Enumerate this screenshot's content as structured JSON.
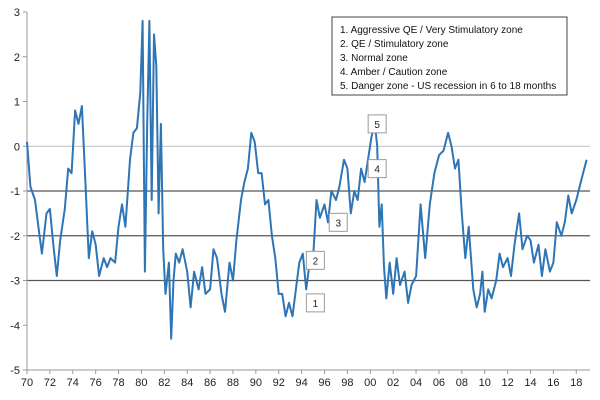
{
  "chart_data": {
    "type": "line",
    "title": "",
    "xlabel": "",
    "ylabel": "",
    "xlim": [
      1970,
      2019.2
    ],
    "ylim": [
      -5,
      3
    ],
    "yticks": [
      -5,
      -4,
      -3,
      -2,
      -1,
      0,
      1,
      2,
      3
    ],
    "xtick_values": [
      1970,
      1972,
      1974,
      1976,
      1978,
      1980,
      1982,
      1984,
      1986,
      1988,
      1990,
      1992,
      1994,
      1996,
      1998,
      2000,
      2002,
      2004,
      2006,
      2008,
      2010,
      2012,
      2014,
      2016,
      2018
    ],
    "xtick_labels": [
      "70",
      "72",
      "74",
      "76",
      "78",
      "80",
      "82",
      "84",
      "86",
      "88",
      "90",
      "92",
      "94",
      "96",
      "98",
      "00",
      "02",
      "04",
      "06",
      "08",
      "10",
      "12",
      "14",
      "16",
      "18"
    ],
    "grid": false,
    "reference_lines": [
      {
        "y": 0,
        "color": "#bfbfbf"
      },
      {
        "y": -1,
        "color": "#555555"
      },
      {
        "y": -2,
        "color": "#555555"
      },
      {
        "y": -3,
        "color": "#555555"
      }
    ],
    "zone_labels": [
      {
        "text": "5",
        "x": 2000.6,
        "y": 0.5
      },
      {
        "text": "4",
        "x": 2000.6,
        "y": -0.5
      },
      {
        "text": "3",
        "x": 1997.2,
        "y": -1.7
      },
      {
        "text": "2",
        "x": 1995.2,
        "y": -2.55
      },
      {
        "text": "1",
        "x": 1995.2,
        "y": -3.5
      }
    ],
    "legend": {
      "position": "top-right",
      "entries": [
        "1.  Aggressive QE / Very Stimulatory zone",
        "2.  QE / Stimulatory zone",
        "3.  Normal zone",
        "4.  Amber / Caution zone",
        "5.  Danger zone - US recession in 6 to 18 months"
      ]
    },
    "series": [
      {
        "color": "#2e75b6",
        "points": [
          [
            1970.0,
            0.1
          ],
          [
            1970.3,
            -0.9
          ],
          [
            1970.7,
            -1.2
          ],
          [
            1971.0,
            -1.8
          ],
          [
            1971.3,
            -2.4
          ],
          [
            1971.7,
            -1.5
          ],
          [
            1972.0,
            -1.4
          ],
          [
            1972.3,
            -2.2
          ],
          [
            1972.6,
            -2.9
          ],
          [
            1972.9,
            -2.1
          ],
          [
            1973.3,
            -1.4
          ],
          [
            1973.6,
            -0.5
          ],
          [
            1973.9,
            -0.6
          ],
          [
            1974.2,
            0.8
          ],
          [
            1974.5,
            0.5
          ],
          [
            1974.8,
            0.9
          ],
          [
            1975.1,
            -0.8
          ],
          [
            1975.4,
            -2.5
          ],
          [
            1975.7,
            -1.9
          ],
          [
            1976.0,
            -2.2
          ],
          [
            1976.3,
            -2.9
          ],
          [
            1976.7,
            -2.5
          ],
          [
            1977.0,
            -2.7
          ],
          [
            1977.3,
            -2.5
          ],
          [
            1977.7,
            -2.6
          ],
          [
            1978.0,
            -1.8
          ],
          [
            1978.3,
            -1.3
          ],
          [
            1978.6,
            -1.8
          ],
          [
            1979.0,
            -0.3
          ],
          [
            1979.3,
            0.3
          ],
          [
            1979.6,
            0.4
          ],
          [
            1979.9,
            1.2
          ],
          [
            1980.1,
            2.8
          ],
          [
            1980.3,
            -2.8
          ],
          [
            1980.5,
            0.5
          ],
          [
            1980.7,
            2.8
          ],
          [
            1980.9,
            -1.2
          ],
          [
            1981.1,
            2.5
          ],
          [
            1981.3,
            1.8
          ],
          [
            1981.5,
            -1.5
          ],
          [
            1981.7,
            0.5
          ],
          [
            1981.9,
            -2.3
          ],
          [
            1982.1,
            -3.3
          ],
          [
            1982.4,
            -2.6
          ],
          [
            1982.6,
            -4.3
          ],
          [
            1982.8,
            -3.0
          ],
          [
            1983.0,
            -2.4
          ],
          [
            1983.3,
            -2.6
          ],
          [
            1983.6,
            -2.3
          ],
          [
            1984.0,
            -2.8
          ],
          [
            1984.3,
            -3.6
          ],
          [
            1984.6,
            -2.8
          ],
          [
            1985.0,
            -3.2
          ],
          [
            1985.3,
            -2.7
          ],
          [
            1985.6,
            -3.3
          ],
          [
            1986.0,
            -3.2
          ],
          [
            1986.3,
            -2.3
          ],
          [
            1986.6,
            -2.5
          ],
          [
            1987.0,
            -3.3
          ],
          [
            1987.3,
            -3.7
          ],
          [
            1987.7,
            -2.6
          ],
          [
            1988.0,
            -3.0
          ],
          [
            1988.3,
            -2.1
          ],
          [
            1988.7,
            -1.2
          ],
          [
            1989.0,
            -0.8
          ],
          [
            1989.3,
            -0.5
          ],
          [
            1989.6,
            0.3
          ],
          [
            1989.9,
            0.1
          ],
          [
            1990.2,
            -0.6
          ],
          [
            1990.5,
            -0.6
          ],
          [
            1990.8,
            -1.3
          ],
          [
            1991.1,
            -1.2
          ],
          [
            1991.4,
            -2.0
          ],
          [
            1991.7,
            -2.5
          ],
          [
            1992.0,
            -3.3
          ],
          [
            1992.3,
            -3.3
          ],
          [
            1992.6,
            -3.8
          ],
          [
            1992.9,
            -3.5
          ],
          [
            1993.2,
            -3.8
          ],
          [
            1993.5,
            -3.2
          ],
          [
            1993.8,
            -2.6
          ],
          [
            1994.1,
            -2.4
          ],
          [
            1994.4,
            -3.2
          ],
          [
            1994.7,
            -2.6
          ],
          [
            1995.0,
            -2.5
          ],
          [
            1995.3,
            -1.2
          ],
          [
            1995.6,
            -1.6
          ],
          [
            1996.0,
            -1.3
          ],
          [
            1996.3,
            -1.7
          ],
          [
            1996.6,
            -1.0
          ],
          [
            1997.0,
            -1.2
          ],
          [
            1997.3,
            -0.9
          ],
          [
            1997.7,
            -0.3
          ],
          [
            1998.0,
            -0.5
          ],
          [
            1998.3,
            -1.5
          ],
          [
            1998.6,
            -1.0
          ],
          [
            1998.9,
            -1.2
          ],
          [
            1999.2,
            -0.5
          ],
          [
            1999.5,
            -0.8
          ],
          [
            1999.8,
            -0.3
          ],
          [
            2000.1,
            0.2
          ],
          [
            2000.4,
            0.5
          ],
          [
            2000.6,
            0.0
          ],
          [
            2000.8,
            -1.8
          ],
          [
            2001.0,
            -1.3
          ],
          [
            2001.2,
            -2.7
          ],
          [
            2001.4,
            -3.4
          ],
          [
            2001.7,
            -2.6
          ],
          [
            2002.0,
            -3.3
          ],
          [
            2002.3,
            -2.5
          ],
          [
            2002.6,
            -3.1
          ],
          [
            2003.0,
            -2.8
          ],
          [
            2003.3,
            -3.5
          ],
          [
            2003.6,
            -3.1
          ],
          [
            2004.0,
            -2.9
          ],
          [
            2004.4,
            -1.3
          ],
          [
            2004.8,
            -2.5
          ],
          [
            2005.2,
            -1.3
          ],
          [
            2005.6,
            -0.6
          ],
          [
            2006.0,
            -0.2
          ],
          [
            2006.4,
            -0.1
          ],
          [
            2006.8,
            0.3
          ],
          [
            2007.1,
            0.0
          ],
          [
            2007.4,
            -0.5
          ],
          [
            2007.7,
            -0.3
          ],
          [
            2008.0,
            -1.5
          ],
          [
            2008.3,
            -2.5
          ],
          [
            2008.6,
            -1.8
          ],
          [
            2009.0,
            -3.2
          ],
          [
            2009.3,
            -3.6
          ],
          [
            2009.6,
            -3.3
          ],
          [
            2009.8,
            -2.8
          ],
          [
            2010.0,
            -3.7
          ],
          [
            2010.3,
            -3.2
          ],
          [
            2010.6,
            -3.4
          ],
          [
            2011.0,
            -3.0
          ],
          [
            2011.3,
            -2.4
          ],
          [
            2011.6,
            -2.7
          ],
          [
            2012.0,
            -2.5
          ],
          [
            2012.3,
            -2.9
          ],
          [
            2012.6,
            -2.2
          ],
          [
            2013.0,
            -1.5
          ],
          [
            2013.3,
            -2.3
          ],
          [
            2013.7,
            -2.0
          ],
          [
            2014.0,
            -2.1
          ],
          [
            2014.3,
            -2.6
          ],
          [
            2014.7,
            -2.2
          ],
          [
            2015.0,
            -2.9
          ],
          [
            2015.3,
            -2.3
          ],
          [
            2015.7,
            -2.8
          ],
          [
            2016.0,
            -2.6
          ],
          [
            2016.3,
            -1.7
          ],
          [
            2016.7,
            -2.0
          ],
          [
            2017.0,
            -1.7
          ],
          [
            2017.3,
            -1.1
          ],
          [
            2017.6,
            -1.5
          ],
          [
            2018.0,
            -1.2
          ],
          [
            2018.3,
            -0.9
          ],
          [
            2018.6,
            -0.6
          ],
          [
            2018.9,
            -0.3
          ]
        ]
      }
    ]
  }
}
